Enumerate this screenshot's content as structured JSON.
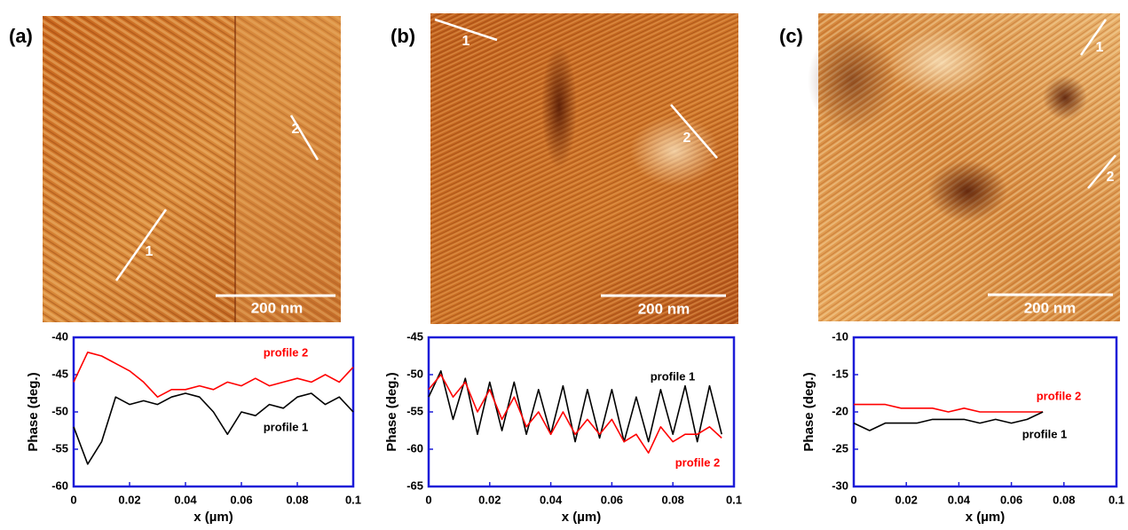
{
  "chart_data": [
    {
      "type": "line",
      "panel_label": "(a)",
      "ylabel": "Phase (deg.)",
      "xlabel": "x (µm)",
      "image": {
        "scale_bar": "200 nm",
        "line_labels": [
          "1",
          "2"
        ]
      },
      "xlim": [
        0,
        0.1
      ],
      "xticks": [
        0,
        0.02,
        0.04,
        0.06,
        0.08,
        0.1
      ],
      "ylim": [
        -60,
        -40
      ],
      "yticks": [
        -60,
        -55,
        -50,
        -45,
        -40
      ],
      "x": [
        0,
        0.005,
        0.01,
        0.015,
        0.02,
        0.025,
        0.03,
        0.035,
        0.04,
        0.045,
        0.05,
        0.055,
        0.06,
        0.065,
        0.07,
        0.075,
        0.08,
        0.085,
        0.09,
        0.095,
        0.1
      ],
      "series": [
        {
          "name": "profile 2",
          "color": "#ff0000",
          "values": [
            -46,
            -42,
            -42.5,
            -43.5,
            -44.5,
            -46,
            -48,
            -47,
            -47,
            -46.5,
            -47,
            -46,
            -46.5,
            -45.5,
            -46.5,
            -46,
            -45.5,
            -46,
            -45,
            -46,
            -44
          ]
        },
        {
          "name": "profile 1",
          "color": "#000000",
          "values": [
            -52,
            -57,
            -54,
            -48,
            -49,
            -48.5,
            -49,
            -48,
            -47.5,
            -48,
            -50,
            -53,
            -50,
            -50.5,
            -49,
            -49.5,
            -48,
            -47.5,
            -49,
            -48,
            -50
          ]
        }
      ]
    },
    {
      "type": "line",
      "panel_label": "(b)",
      "ylabel": "Phase (deg.)",
      "xlabel": "x (µm)",
      "image": {
        "scale_bar": "200 nm",
        "line_labels": [
          "1",
          "2"
        ]
      },
      "xlim": [
        0,
        0.1
      ],
      "xticks": [
        0,
        0.02,
        0.04,
        0.06,
        0.08,
        0.1
      ],
      "ylim": [
        -65,
        -45
      ],
      "yticks": [
        -65,
        -60,
        -55,
        -50,
        -45
      ],
      "x": [
        0,
        0.004,
        0.008,
        0.012,
        0.016,
        0.02,
        0.024,
        0.028,
        0.032,
        0.036,
        0.04,
        0.044,
        0.048,
        0.052,
        0.056,
        0.06,
        0.064,
        0.068,
        0.072,
        0.076,
        0.08,
        0.084,
        0.088,
        0.092,
        0.096
      ],
      "series": [
        {
          "name": "profile 1",
          "color": "#000000",
          "values": [
            -53,
            -49.5,
            -56,
            -50.5,
            -58,
            -51,
            -57.5,
            -51,
            -58,
            -52,
            -58,
            -51.5,
            -59,
            -52,
            -58.5,
            -52,
            -59,
            -53,
            -59,
            -52,
            -58,
            -51.5,
            -59,
            -51.5,
            -58
          ]
        },
        {
          "name": "profile 2",
          "color": "#ff0000",
          "values": [
            -52,
            -50,
            -53,
            -51,
            -55,
            -52,
            -56,
            -53,
            -57,
            -55,
            -58,
            -55,
            -58,
            -56,
            -58,
            -56,
            -59,
            -58,
            -60.5,
            -57,
            -59,
            -58,
            -58,
            -57,
            -58.5
          ]
        }
      ]
    },
    {
      "type": "line",
      "panel_label": "(c)",
      "ylabel": "Phase (deg.)",
      "xlabel": "x (µm)",
      "image": {
        "scale_bar": "200 nm",
        "line_labels": [
          "1",
          "2"
        ]
      },
      "xlim": [
        0,
        0.1
      ],
      "xticks": [
        0,
        0.02,
        0.04,
        0.06,
        0.08,
        0.1
      ],
      "ylim": [
        -30,
        -10
      ],
      "yticks": [
        -30,
        -25,
        -20,
        -15,
        -10
      ],
      "x": [
        0,
        0.006,
        0.012,
        0.018,
        0.024,
        0.03,
        0.036,
        0.042,
        0.048,
        0.054,
        0.06,
        0.066,
        0.072
      ],
      "series": [
        {
          "name": "profile 2",
          "color": "#ff0000",
          "values": [
            -19,
            -19,
            -19,
            -19.5,
            -19.5,
            -19.5,
            -20,
            -19.5,
            -20,
            -20,
            -20,
            -20,
            -20
          ]
        },
        {
          "name": "profile 1",
          "color": "#000000",
          "values": [
            -21.5,
            -22.5,
            -21.5,
            -21.5,
            -21.5,
            -21,
            -21,
            -21,
            -21.5,
            -21,
            -21.5,
            -21,
            -20
          ]
        }
      ]
    }
  ]
}
